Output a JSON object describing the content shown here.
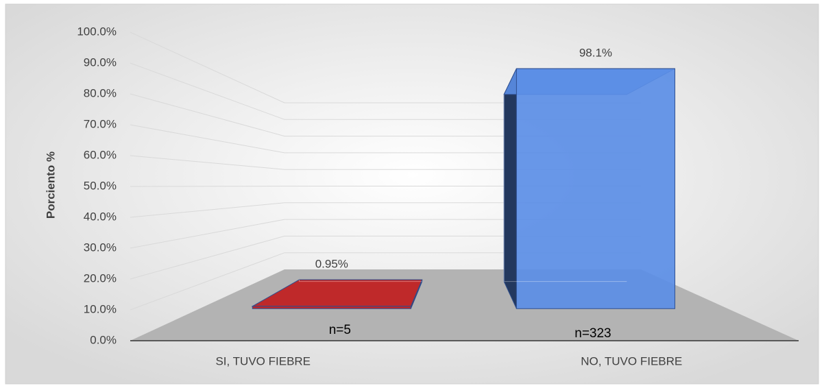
{
  "chart_data": {
    "type": "bar3d",
    "ylabel": "Porciento %",
    "categories": [
      "SI, TUVO FIEBRE",
      "NO, TUVO FIEBRE"
    ],
    "series": [
      {
        "name": "Porciento",
        "colors": [
          "#c0191b",
          "#5b8ee6"
        ],
        "values": [
          0.95,
          98.1
        ],
        "value_labels": [
          "0.95%",
          "98.1%"
        ]
      }
    ],
    "annotations": [
      "n=5",
      "n=323"
    ],
    "ylim": [
      0,
      100
    ],
    "yticks": [
      {
        "value": 0,
        "label": "0.0%"
      },
      {
        "value": 10,
        "label": "10.0%"
      },
      {
        "value": 20,
        "label": "20.0%"
      },
      {
        "value": 30,
        "label": "30.0%"
      },
      {
        "value": 40,
        "label": "40.0%"
      },
      {
        "value": 50,
        "label": "50.0%"
      },
      {
        "value": 60,
        "label": "60.0%"
      },
      {
        "value": 70,
        "label": "70.0%"
      },
      {
        "value": 80,
        "label": "80.0%"
      },
      {
        "value": 90,
        "label": "90.0%"
      },
      {
        "value": 100,
        "label": "100.0%"
      }
    ],
    "grid": true
  }
}
